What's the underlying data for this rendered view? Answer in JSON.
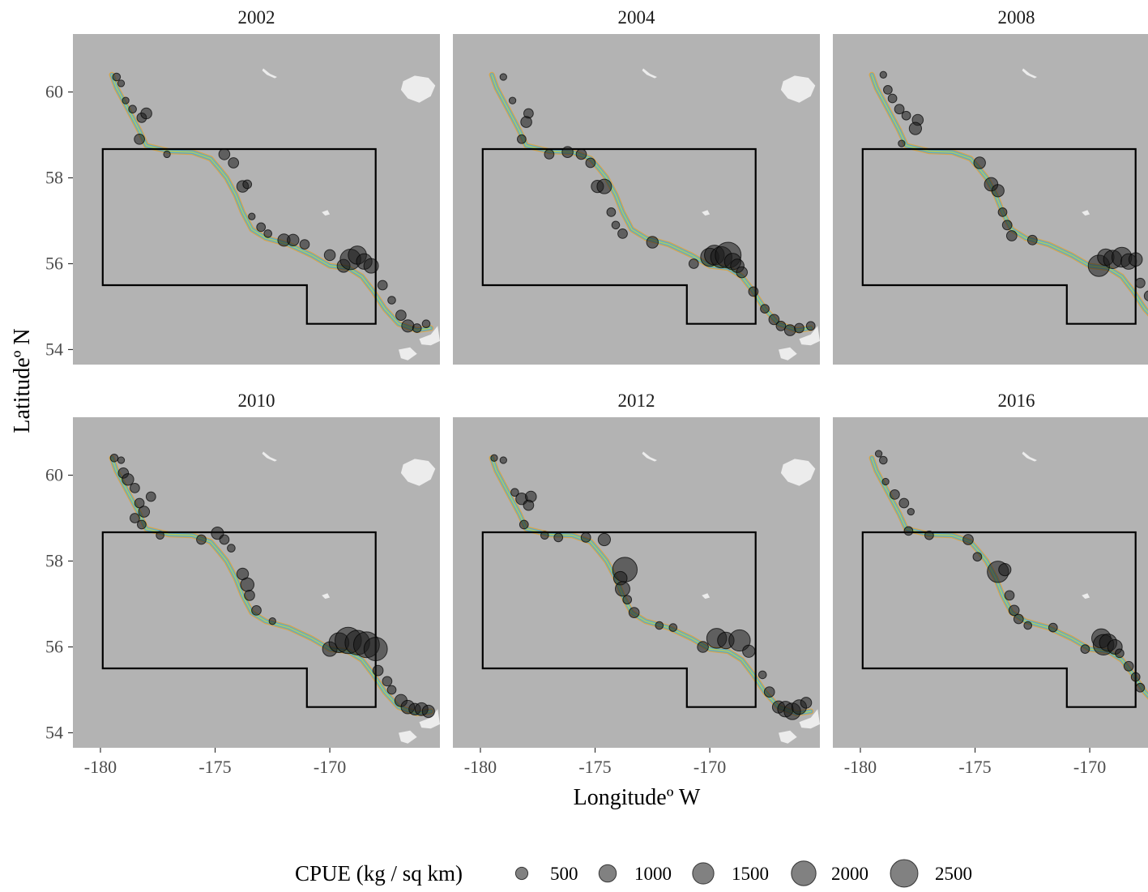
{
  "x_axis_label": "Longitudeº W",
  "y_axis_label": "Latitudeº N",
  "legend": {
    "title": "CPUE (kg / sq km)",
    "entries": [
      "500",
      "1000",
      "1500",
      "2000",
      "2500"
    ]
  },
  "colors": {
    "panel_background": "#b3b3b3",
    "land": "#ececec",
    "point_fill": "#1a1a1a",
    "box_outline": "#000000",
    "habitat_orange": "#d9a441",
    "habitat_blue": "#5fa8c8",
    "habitat_green": "#a9c96a"
  },
  "map_bounds": {
    "lon_min": -181.2,
    "lon_max": -165.2,
    "lat_min": 53.65,
    "lat_max": 61.35
  },
  "x_ticks": [
    "-180",
    "-175",
    "-170"
  ],
  "x_tick_values": [
    -180,
    -175,
    -170
  ],
  "y_ticks": [
    "54",
    "56",
    "58",
    "60"
  ],
  "y_tick_values": [
    54,
    56,
    58,
    60
  ],
  "study_area_box": [
    [
      -179.9,
      58.67
    ],
    [
      -168.0,
      58.67
    ],
    [
      -168.0,
      54.6
    ],
    [
      -171.0,
      54.6
    ],
    [
      -171.0,
      55.5
    ],
    [
      -179.9,
      55.5
    ]
  ],
  "shelf_break_path": [
    [
      -179.5,
      60.4
    ],
    [
      -179.3,
      60.1
    ],
    [
      -179.0,
      59.8
    ],
    [
      -178.7,
      59.5
    ],
    [
      -178.3,
      59.1
    ],
    [
      -178.0,
      58.75
    ],
    [
      -177.0,
      58.62
    ],
    [
      -176.0,
      58.6
    ],
    [
      -175.2,
      58.45
    ],
    [
      -174.8,
      58.2
    ],
    [
      -174.5,
      58.0
    ],
    [
      -174.1,
      57.6
    ],
    [
      -173.8,
      57.2
    ],
    [
      -173.4,
      56.8
    ],
    [
      -172.8,
      56.6
    ],
    [
      -171.8,
      56.45
    ],
    [
      -170.8,
      56.2
    ],
    [
      -170.0,
      55.95
    ],
    [
      -169.2,
      55.9
    ],
    [
      -168.6,
      55.7
    ],
    [
      -168.1,
      55.35
    ],
    [
      -167.6,
      54.95
    ],
    [
      -167.0,
      54.6
    ],
    [
      -166.2,
      54.45
    ],
    [
      -165.6,
      54.5
    ]
  ],
  "land_masses": [
    {
      "name": "St. Matthew Island",
      "outline": [
        [
          -172.9,
          60.55
        ],
        [
          -172.6,
          60.42
        ],
        [
          -172.3,
          60.35
        ],
        [
          -172.4,
          60.32
        ],
        [
          -172.75,
          60.4
        ],
        [
          -172.95,
          60.5
        ]
      ]
    },
    {
      "name": "Nunivak Island",
      "outline": [
        [
          -166.8,
          60.25
        ],
        [
          -166.3,
          60.38
        ],
        [
          -165.7,
          60.33
        ],
        [
          -165.4,
          60.15
        ],
        [
          -165.6,
          59.9
        ],
        [
          -166.1,
          59.75
        ],
        [
          -166.6,
          59.85
        ],
        [
          -166.9,
          60.05
        ]
      ]
    },
    {
      "name": "St. Paul Island",
      "outline": [
        [
          -170.35,
          57.2
        ],
        [
          -170.1,
          57.25
        ],
        [
          -170.0,
          57.15
        ],
        [
          -170.2,
          57.12
        ]
      ]
    },
    {
      "name": "Unimak and Alaska Peninsula",
      "outline": [
        [
          -166.1,
          54.25
        ],
        [
          -165.6,
          54.35
        ],
        [
          -165.3,
          54.55
        ],
        [
          -165.2,
          54.2
        ],
        [
          -165.6,
          54.1
        ],
        [
          -166.0,
          54.12
        ]
      ]
    },
    {
      "name": "Unalaska Island",
      "outline": [
        [
          -167.0,
          54.0
        ],
        [
          -166.5,
          54.05
        ],
        [
          -166.2,
          53.9
        ],
        [
          -166.6,
          53.75
        ],
        [
          -166.9,
          53.8
        ]
      ]
    }
  ],
  "panels": [
    {
      "year": "2002",
      "points": [
        [
          -179.3,
          60.35,
          200
        ],
        [
          -179.1,
          60.2,
          150
        ],
        [
          -178.9,
          59.8,
          150
        ],
        [
          -178.6,
          59.6,
          200
        ],
        [
          -178.2,
          59.4,
          300
        ],
        [
          -178.0,
          59.5,
          400
        ],
        [
          -178.3,
          58.9,
          350
        ],
        [
          -177.1,
          58.55,
          150
        ],
        [
          -174.6,
          58.55,
          400
        ],
        [
          -174.2,
          58.35,
          350
        ],
        [
          -173.8,
          57.8,
          450
        ],
        [
          -173.6,
          57.85,
          250
        ],
        [
          -173.4,
          57.1,
          150
        ],
        [
          -173.0,
          56.85,
          250
        ],
        [
          -172.7,
          56.7,
          200
        ],
        [
          -172.0,
          56.55,
          500
        ],
        [
          -171.6,
          56.55,
          450
        ],
        [
          -171.1,
          56.45,
          300
        ],
        [
          -170.0,
          56.2,
          400
        ],
        [
          -169.4,
          55.95,
          550
        ],
        [
          -169.1,
          56.1,
          1400
        ],
        [
          -168.8,
          56.2,
          1100
        ],
        [
          -168.5,
          56.05,
          800
        ],
        [
          -168.2,
          55.95,
          700
        ],
        [
          -167.7,
          55.5,
          300
        ],
        [
          -167.3,
          55.15,
          200
        ],
        [
          -166.9,
          54.8,
          350
        ],
        [
          -166.6,
          54.55,
          500
        ],
        [
          -166.2,
          54.5,
          250
        ],
        [
          -165.8,
          54.6,
          200
        ]
      ]
    },
    {
      "year": "2004",
      "points": [
        [
          -179.0,
          60.35,
          150
        ],
        [
          -178.6,
          59.8,
          150
        ],
        [
          -177.9,
          59.5,
          300
        ],
        [
          -178.0,
          59.3,
          400
        ],
        [
          -178.2,
          58.9,
          250
        ],
        [
          -177.0,
          58.55,
          300
        ],
        [
          -176.2,
          58.6,
          400
        ],
        [
          -175.6,
          58.55,
          350
        ],
        [
          -175.2,
          58.35,
          300
        ],
        [
          -174.9,
          57.8,
          500
        ],
        [
          -174.6,
          57.8,
          700
        ],
        [
          -174.3,
          57.2,
          250
        ],
        [
          -174.1,
          56.9,
          200
        ],
        [
          -173.8,
          56.7,
          300
        ],
        [
          -172.5,
          56.5,
          450
        ],
        [
          -170.7,
          56.0,
          300
        ],
        [
          -170.0,
          56.15,
          1100
        ],
        [
          -169.8,
          56.2,
          1300
        ],
        [
          -169.5,
          56.15,
          1500
        ],
        [
          -169.2,
          56.2,
          2200
        ],
        [
          -169.0,
          56.05,
          900
        ],
        [
          -168.8,
          55.95,
          600
        ],
        [
          -168.6,
          55.8,
          400
        ],
        [
          -168.1,
          55.35,
          300
        ],
        [
          -167.6,
          54.95,
          250
        ],
        [
          -167.2,
          54.7,
          350
        ],
        [
          -166.9,
          54.55,
          300
        ],
        [
          -166.5,
          54.45,
          400
        ],
        [
          -166.1,
          54.5,
          300
        ],
        [
          -165.6,
          54.55,
          250
        ]
      ]
    },
    {
      "year": "2008",
      "points": [
        [
          -179.0,
          60.4,
          150
        ],
        [
          -178.8,
          60.05,
          250
        ],
        [
          -178.6,
          59.85,
          250
        ],
        [
          -178.3,
          59.6,
          300
        ],
        [
          -178.0,
          59.45,
          250
        ],
        [
          -177.5,
          59.35,
          400
        ],
        [
          -177.6,
          59.15,
          500
        ],
        [
          -178.2,
          58.8,
          150
        ],
        [
          -174.8,
          58.35,
          450
        ],
        [
          -174.3,
          57.85,
          600
        ],
        [
          -174.0,
          57.7,
          500
        ],
        [
          -173.8,
          57.2,
          250
        ],
        [
          -173.6,
          56.9,
          300
        ],
        [
          -173.4,
          56.65,
          350
        ],
        [
          -172.5,
          56.55,
          300
        ],
        [
          -169.6,
          55.95,
          1500
        ],
        [
          -169.3,
          56.15,
          900
        ],
        [
          -169.0,
          56.1,
          1100
        ],
        [
          -168.6,
          56.15,
          1300
        ],
        [
          -168.3,
          56.05,
          800
        ],
        [
          -168.0,
          56.1,
          600
        ],
        [
          -167.8,
          55.55,
          300
        ],
        [
          -167.4,
          55.25,
          350
        ],
        [
          -167.2,
          55.15,
          350
        ],
        [
          -166.9,
          54.95,
          300
        ]
      ]
    },
    {
      "year": "2010",
      "points": [
        [
          -179.4,
          60.4,
          200
        ],
        [
          -179.1,
          60.35,
          150
        ],
        [
          -179.0,
          60.05,
          350
        ],
        [
          -178.8,
          59.9,
          450
        ],
        [
          -178.5,
          59.7,
          300
        ],
        [
          -178.3,
          59.35,
          300
        ],
        [
          -178.1,
          59.15,
          400
        ],
        [
          -177.8,
          59.5,
          300
        ],
        [
          -178.5,
          59.0,
          300
        ],
        [
          -178.2,
          58.85,
          250
        ],
        [
          -177.4,
          58.6,
          200
        ],
        [
          -175.6,
          58.5,
          300
        ],
        [
          -174.9,
          58.65,
          500
        ],
        [
          -174.6,
          58.5,
          300
        ],
        [
          -174.3,
          58.3,
          200
        ],
        [
          -173.8,
          57.7,
          450
        ],
        [
          -173.6,
          57.45,
          600
        ],
        [
          -173.5,
          57.2,
          350
        ],
        [
          -173.2,
          56.85,
          300
        ],
        [
          -172.5,
          56.6,
          150
        ],
        [
          -170.0,
          55.95,
          700
        ],
        [
          -169.6,
          56.1,
          1300
        ],
        [
          -169.2,
          56.15,
          2300
        ],
        [
          -168.8,
          56.1,
          2000
        ],
        [
          -168.4,
          56.05,
          2200
        ],
        [
          -168.0,
          55.95,
          1800
        ],
        [
          -167.9,
          55.45,
          350
        ],
        [
          -167.5,
          55.2,
          300
        ],
        [
          -167.3,
          55.0,
          250
        ],
        [
          -166.9,
          54.75,
          500
        ],
        [
          -166.6,
          54.6,
          600
        ],
        [
          -166.3,
          54.55,
          450
        ],
        [
          -166.0,
          54.55,
          550
        ],
        [
          -165.7,
          54.5,
          500
        ]
      ]
    },
    {
      "year": "2012",
      "points": [
        [
          -179.4,
          60.4,
          150
        ],
        [
          -179.0,
          60.35,
          150
        ],
        [
          -178.5,
          59.6,
          200
        ],
        [
          -178.2,
          59.45,
          450
        ],
        [
          -177.8,
          59.5,
          400
        ],
        [
          -177.9,
          59.3,
          350
        ],
        [
          -178.1,
          58.85,
          250
        ],
        [
          -177.2,
          58.6,
          200
        ],
        [
          -176.6,
          58.55,
          250
        ],
        [
          -175.4,
          58.55,
          300
        ],
        [
          -174.6,
          58.5,
          500
        ],
        [
          -173.7,
          57.8,
          2000
        ],
        [
          -173.9,
          57.6,
          600
        ],
        [
          -173.8,
          57.35,
          700
        ],
        [
          -173.6,
          57.1,
          250
        ],
        [
          -173.3,
          56.8,
          350
        ],
        [
          -172.2,
          56.5,
          200
        ],
        [
          -171.6,
          56.45,
          200
        ],
        [
          -170.3,
          56.0,
          400
        ],
        [
          -169.7,
          56.2,
          1300
        ],
        [
          -169.3,
          56.15,
          900
        ],
        [
          -168.7,
          56.15,
          1500
        ],
        [
          -168.3,
          55.9,
          500
        ],
        [
          -167.7,
          55.35,
          200
        ],
        [
          -167.4,
          54.95,
          350
        ],
        [
          -167.0,
          54.6,
          500
        ],
        [
          -166.7,
          54.55,
          800
        ],
        [
          -166.4,
          54.5,
          900
        ],
        [
          -166.1,
          54.6,
          700
        ],
        [
          -165.8,
          54.7,
          400
        ]
      ]
    },
    {
      "year": "2016",
      "points": [
        [
          -179.2,
          60.5,
          150
        ],
        [
          -179.0,
          60.35,
          200
        ],
        [
          -178.9,
          59.85,
          150
        ],
        [
          -178.5,
          59.55,
          300
        ],
        [
          -178.1,
          59.35,
          300
        ],
        [
          -177.8,
          59.15,
          150
        ],
        [
          -177.9,
          58.7,
          250
        ],
        [
          -177.0,
          58.6,
          250
        ],
        [
          -175.3,
          58.5,
          350
        ],
        [
          -174.9,
          58.1,
          250
        ],
        [
          -174.0,
          57.75,
          1500
        ],
        [
          -173.7,
          57.8,
          500
        ],
        [
          -173.5,
          57.2,
          300
        ],
        [
          -173.3,
          56.85,
          350
        ],
        [
          -173.1,
          56.65,
          300
        ],
        [
          -172.7,
          56.5,
          200
        ],
        [
          -171.6,
          56.45,
          250
        ],
        [
          -170.2,
          55.95,
          250
        ],
        [
          -169.5,
          56.2,
          1200
        ],
        [
          -169.4,
          56.05,
          1400
        ],
        [
          -169.2,
          56.1,
          1000
        ],
        [
          -168.9,
          56.0,
          700
        ],
        [
          -168.7,
          55.85,
          250
        ],
        [
          -168.3,
          55.55,
          300
        ],
        [
          -168.0,
          55.3,
          250
        ],
        [
          -167.8,
          55.05,
          250
        ]
      ]
    }
  ]
}
